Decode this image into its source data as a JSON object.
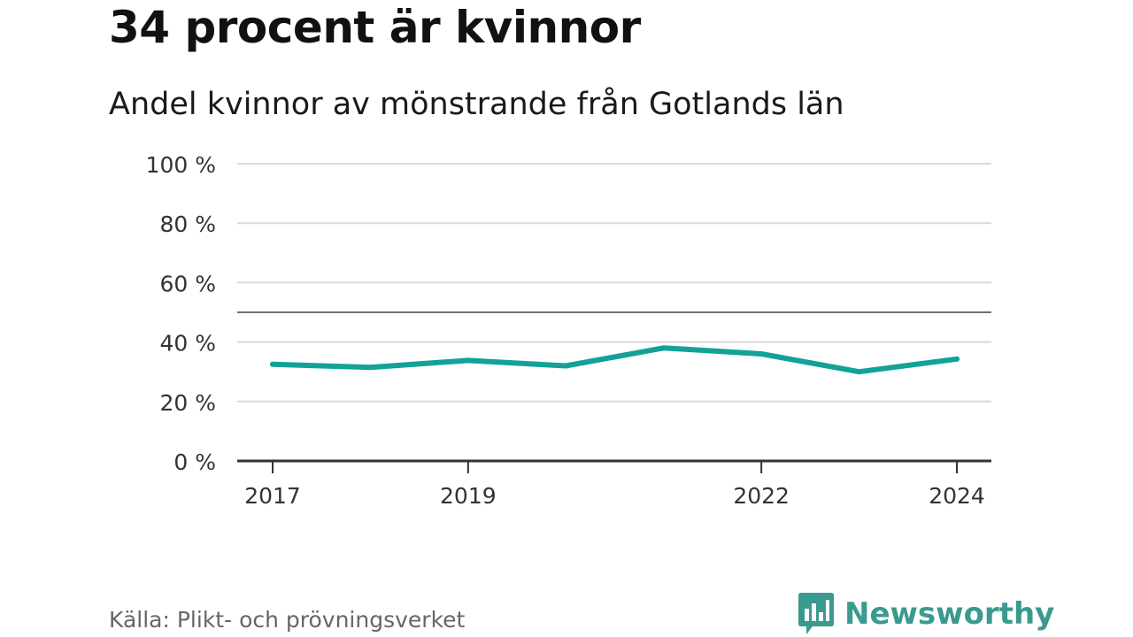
{
  "title": "34 procent är kvinnor",
  "subtitle": "Andel kvinnor av mönstrande från Gotlands län",
  "source": "Källa: Plikt- och prövningsverket",
  "brand": "Newsworthy",
  "colors": {
    "line": "#12a297",
    "grid": "#d9d9d9",
    "reference": "#6f6f78",
    "axis": "#333333",
    "brand": "#3a9a8f"
  },
  "chart_data": {
    "type": "line",
    "title": "34 procent är kvinnor",
    "subtitle": "Andel kvinnor av mönstrande från Gotlands län",
    "xlabel": "",
    "ylabel": "",
    "x": [
      2017,
      2018,
      2019,
      2020,
      2021,
      2022,
      2023,
      2024
    ],
    "x_ticks": [
      2017,
      2019,
      2022,
      2024
    ],
    "x_tick_labels": [
      "2017",
      "2019",
      "2022",
      "2024"
    ],
    "series": [
      {
        "name": "Andel kvinnor",
        "values": [
          32.5,
          31.5,
          33.8,
          32.0,
          38.0,
          36.0,
          30.0,
          34.3
        ]
      }
    ],
    "y_ticks": [
      0,
      20,
      40,
      60,
      80,
      100
    ],
    "y_tick_labels": [
      "0 %",
      "20 %",
      "40 %",
      "60 %",
      "80 %",
      "100 %"
    ],
    "ylim": [
      0,
      100
    ],
    "reference_line": 50,
    "grid": true
  }
}
